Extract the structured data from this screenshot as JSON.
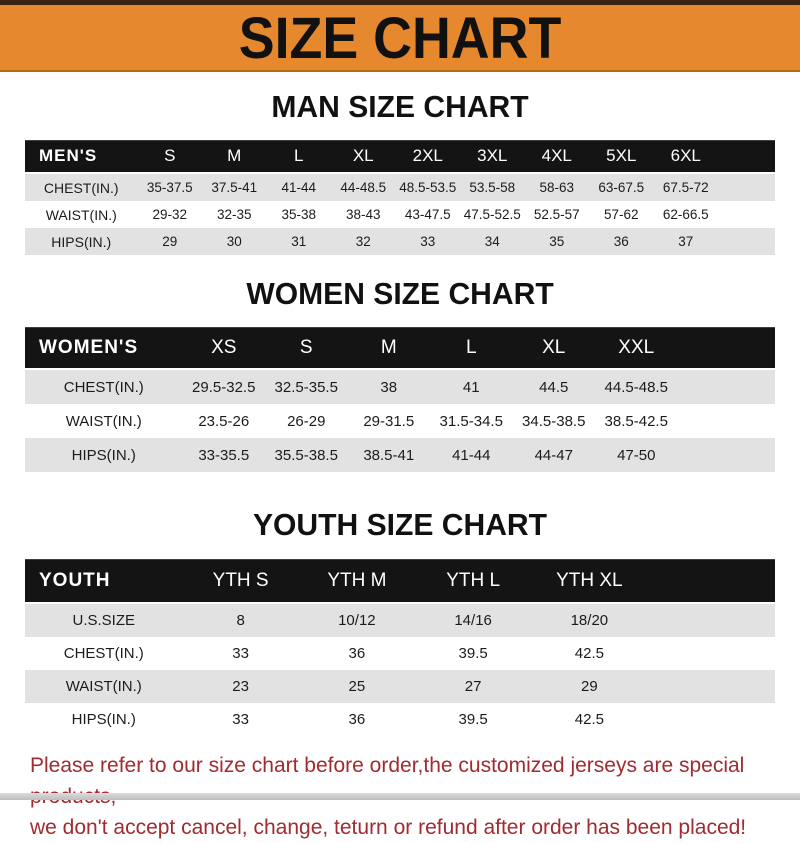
{
  "title": "SIZE CHART",
  "sections": [
    {
      "heading": "MAN SIZE CHART",
      "band_label": "MEN'S",
      "columns": [
        "S",
        "M",
        "L",
        "XL",
        "2XL",
        "3XL",
        "4XL",
        "5XL",
        "6XL"
      ],
      "rows": [
        {
          "label": "CHEST(IN.)",
          "values": [
            "35-37.5",
            "37.5-41",
            "41-44",
            "44-48.5",
            "48.5-53.5",
            "53.5-58",
            "58-63",
            "63-67.5",
            "67.5-72"
          ]
        },
        {
          "label": "WAIST(IN.)",
          "values": [
            "29-32",
            "32-35",
            "35-38",
            "38-43",
            "43-47.5",
            "47.5-52.5",
            "52.5-57",
            "57-62",
            "62-66.5"
          ]
        },
        {
          "label": "HIPS(IN.)",
          "values": [
            "29",
            "30",
            "31",
            "32",
            "33",
            "34",
            "35",
            "36",
            "37"
          ]
        }
      ]
    },
    {
      "heading": "WOMEN SIZE CHART",
      "band_label": "WOMEN'S",
      "columns": [
        "XS",
        "S",
        "M",
        "L",
        "XL",
        "XXL"
      ],
      "rows": [
        {
          "label": "CHEST(IN.)",
          "values": [
            "29.5-32.5",
            "32.5-35.5",
            "38",
            "41",
            "44.5",
            "44.5-48.5"
          ]
        },
        {
          "label": "WAIST(IN.)",
          "values": [
            "23.5-26",
            "26-29",
            "29-31.5",
            "31.5-34.5",
            "34.5-38.5",
            "38.5-42.5"
          ]
        },
        {
          "label": "HIPS(IN.)",
          "values": [
            "33-35.5",
            "35.5-38.5",
            "38.5-41",
            "41-44",
            "44-47",
            "47-50"
          ]
        }
      ]
    },
    {
      "heading": "YOUTH SIZE CHART",
      "band_label": "YOUTH",
      "columns": [
        "YTH S",
        "YTH M",
        "YTH L",
        "YTH XL"
      ],
      "rows": [
        {
          "label": "U.S.SIZE",
          "values": [
            "8",
            "10/12",
            "14/16",
            "18/20"
          ]
        },
        {
          "label": "CHEST(IN.)",
          "values": [
            "33",
            "36",
            "39.5",
            "42.5"
          ]
        },
        {
          "label": "WAIST(IN.)",
          "values": [
            "23",
            "25",
            "27",
            "29"
          ]
        },
        {
          "label": "HIPS(IN.)",
          "values": [
            "33",
            "36",
            "39.5",
            "42.5"
          ]
        }
      ]
    }
  ],
  "footer": {
    "line1": "Please refer to our size chart before order,the customized jerseys are special products,",
    "line2": "we don't accept cancel, change, teturn or refund after order has been placed!"
  },
  "colors": {
    "banner_orange": "#E6882D",
    "banner_top_strip": "#3A2313",
    "banner_bottom_edge": "#B36A1A",
    "band_black": "#141414",
    "row_gray": "#E2E2E2",
    "footer_red": "#A12B31"
  }
}
